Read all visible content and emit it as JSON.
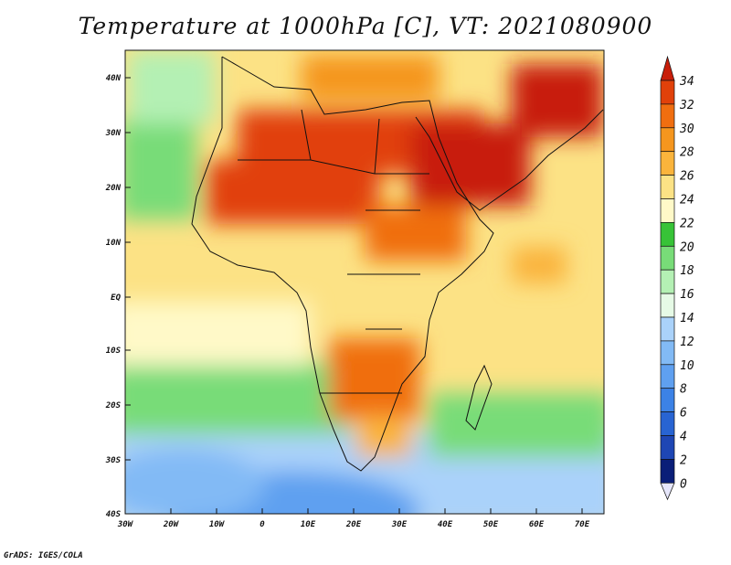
{
  "title": "Temperature at 1000hPa [C], VT: 2021080900",
  "footer": "GrADS: IGES/COLA",
  "lat_labels": [
    "40N",
    "30N",
    "20N",
    "10N",
    "EQ",
    "10S",
    "20S",
    "30S",
    "40S"
  ],
  "lon_labels": [
    "30W",
    "20W",
    "10W",
    "0",
    "10E",
    "20E",
    "30E",
    "40E",
    "50E",
    "60E",
    "70E"
  ],
  "colorbar": {
    "labels": [
      "34",
      "32",
      "30",
      "28",
      "26",
      "24",
      "22",
      "20",
      "18",
      "16",
      "14",
      "12",
      "10",
      "8",
      "6",
      "4",
      "2",
      "0"
    ],
    "colors": [
      "#c81e0a",
      "#e1410a",
      "#f06e10",
      "#f5961e",
      "#fab43c",
      "#fce285",
      "#fff9c8",
      "#37c337",
      "#78dc78",
      "#b4f0b4",
      "#e6fae6",
      "#aad2fa",
      "#82baf5",
      "#5fa0f0",
      "#3c82e6",
      "#2864d2",
      "#1e46b4",
      "#0a1e78",
      "#0a0a64"
    ]
  },
  "domain": {
    "lon_min": -30,
    "lon_max": 75,
    "lat_min": -40,
    "lat_max": 45
  }
}
